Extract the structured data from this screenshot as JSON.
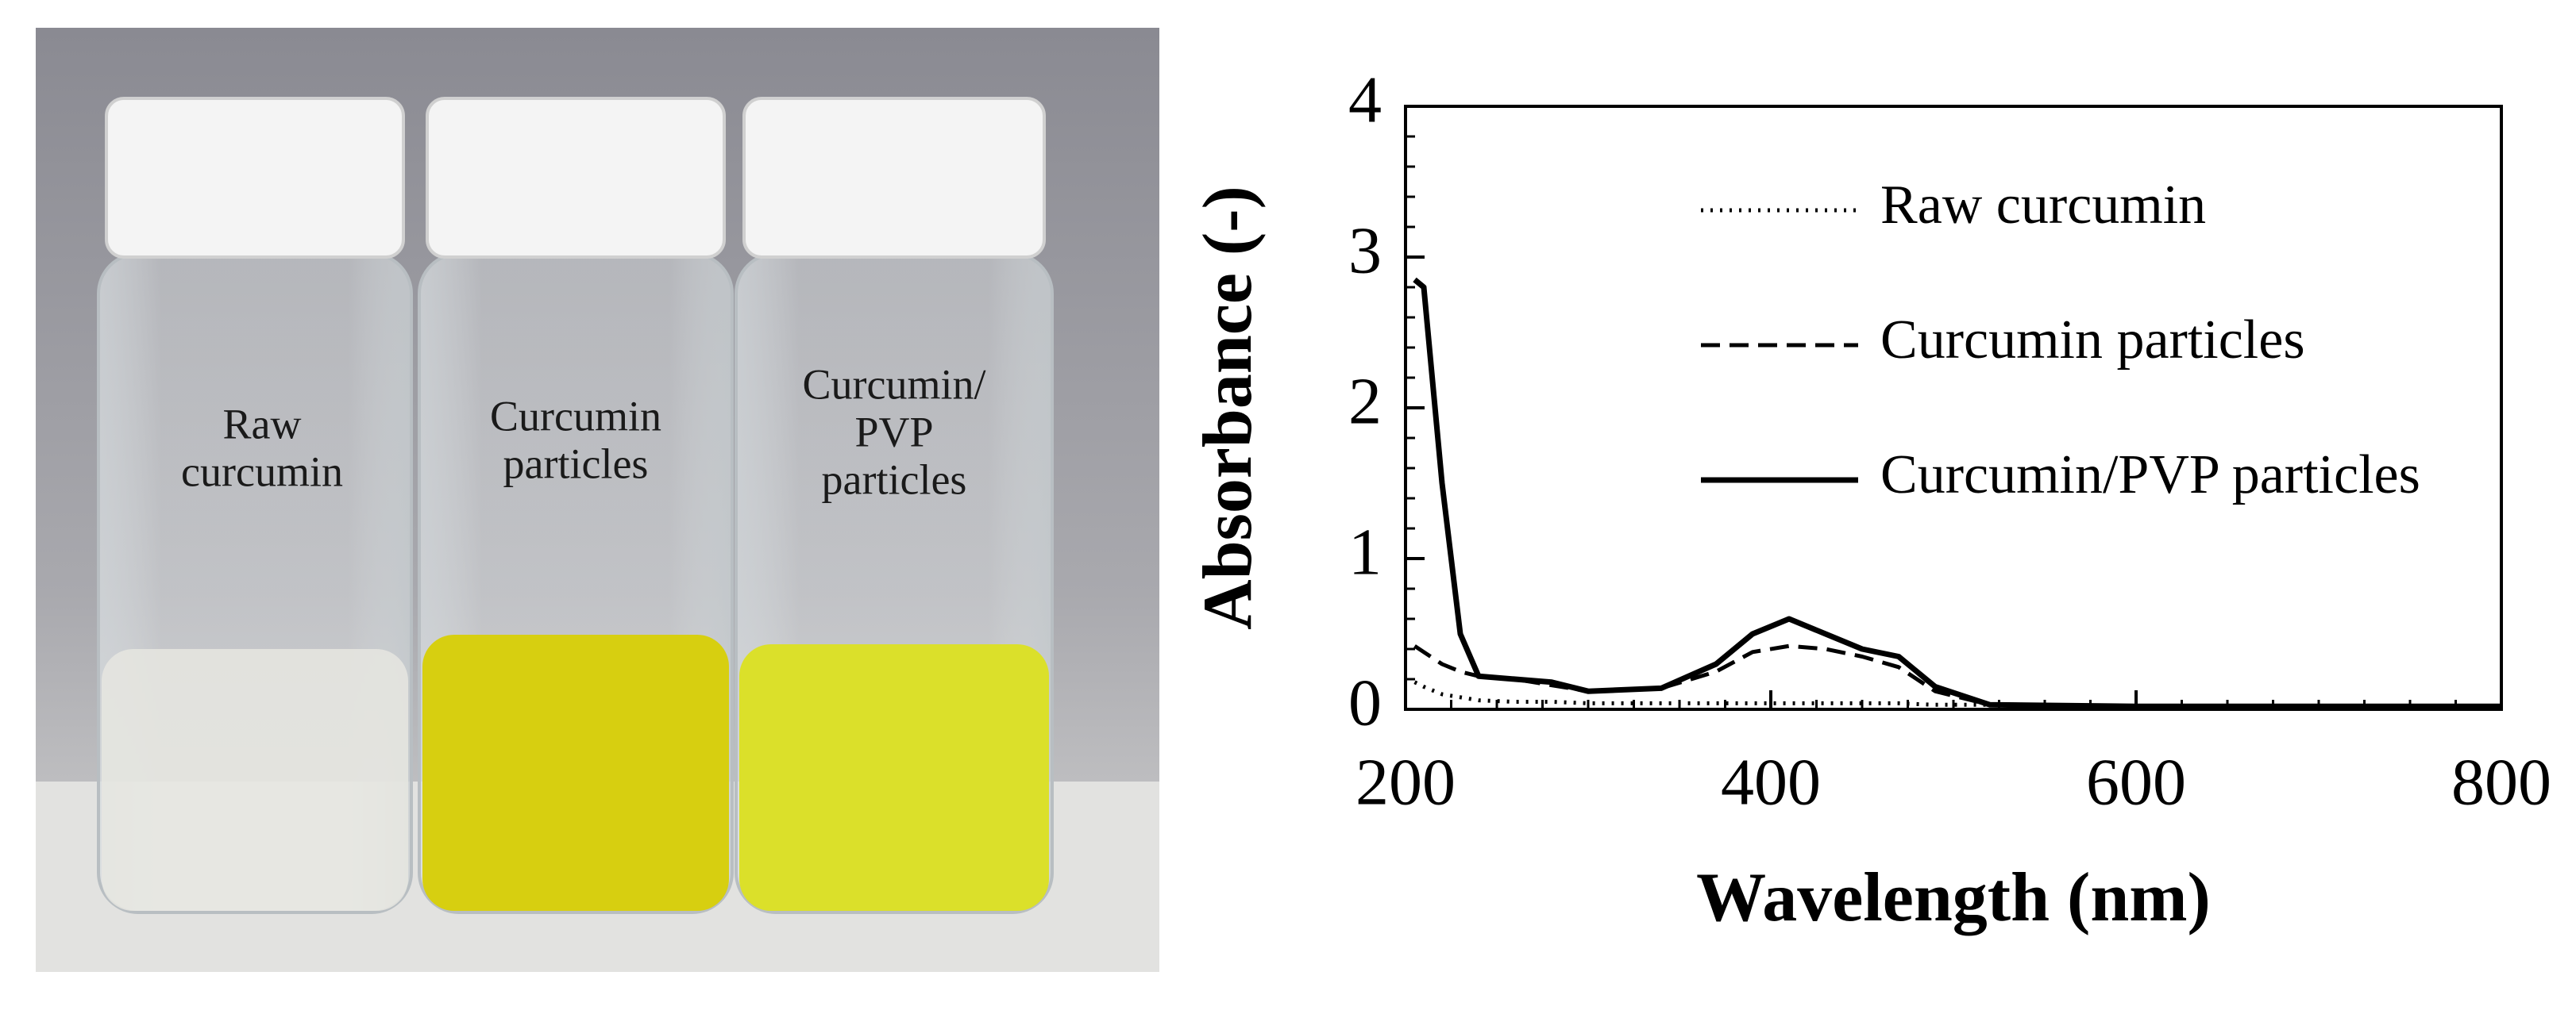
{
  "photo": {
    "labels": [
      [
        "Raw",
        "curcumin"
      ],
      [
        "Curcumin",
        "particles"
      ],
      [
        "Curcumin/",
        "PVP",
        "particles"
      ]
    ]
  },
  "chart_data": {
    "type": "line",
    "xlabel": "Wavelength (nm)",
    "ylabel": "Absorbance (-)",
    "x": [
      205,
      210,
      220,
      230,
      240,
      260,
      280,
      300,
      340,
      370,
      390,
      410,
      430,
      450,
      470,
      490,
      520,
      600,
      700,
      800
    ],
    "series": [
      {
        "name": "Raw curcumin",
        "color": "#000000",
        "dash": "dotted",
        "values": [
          0.18,
          0.15,
          0.1,
          0.08,
          0.06,
          0.05,
          0.05,
          0.04,
          0.04,
          0.04,
          0.04,
          0.04,
          0.04,
          0.04,
          0.04,
          0.03,
          0.03,
          0.02,
          0.02,
          0.02
        ]
      },
      {
        "name": "Curcumin particles",
        "color": "#000000",
        "dash": "dashed",
        "values": [
          0.42,
          0.38,
          0.3,
          0.25,
          0.22,
          0.2,
          0.16,
          0.12,
          0.14,
          0.25,
          0.38,
          0.42,
          0.4,
          0.35,
          0.28,
          0.12,
          0.03,
          0.02,
          0.02,
          0.02
        ]
      },
      {
        "name": "Curcumin/PVP particles",
        "color": "#000000",
        "dash": "solid",
        "values": [
          2.85,
          2.8,
          1.5,
          0.5,
          0.22,
          0.2,
          0.18,
          0.12,
          0.14,
          0.3,
          0.5,
          0.6,
          0.5,
          0.4,
          0.35,
          0.15,
          0.03,
          0.02,
          0.02,
          0.02
        ]
      }
    ],
    "xlim": [
      200,
      800
    ],
    "xticks": [
      200,
      400,
      600,
      800
    ],
    "ylim": [
      0,
      4
    ],
    "yticks": [
      0,
      1,
      2,
      3,
      4
    ],
    "grid": false,
    "legend": "upper right"
  }
}
